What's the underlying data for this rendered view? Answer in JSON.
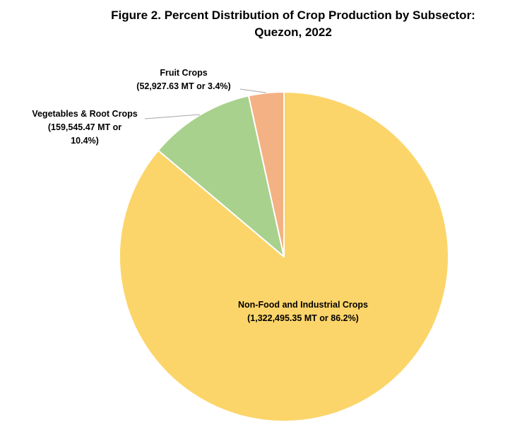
{
  "chart_data": {
    "type": "pie",
    "title_lines": [
      "Figure 2. Percent Distribution of Crop Production by Subsector:",
      "Quezon, 2022"
    ],
    "start_angle_deg": 0,
    "direction": "clockwise",
    "slices": [
      {
        "name": "Non-Food and Industrial Crops",
        "value": 1322495.35,
        "percent": 86.2,
        "color": "#FCD56A",
        "label_lines": [
          "Non-Food and Industrial Crops",
          "(1,322,495.35 MT or 86.2%)"
        ]
      },
      {
        "name": "Vegetables & Root Crops",
        "value": 159545.47,
        "percent": 10.4,
        "color": "#A8D18D",
        "label_lines": [
          "Vegetables & Root Crops",
          "(159,545.47 MT or",
          "10.4%)"
        ]
      },
      {
        "name": "Fruit Crops",
        "value": 52927.63,
        "percent": 3.4,
        "color": "#F4B183",
        "label_lines": [
          "Fruit Crops",
          "(52,927.63 MT or 3.4%)"
        ]
      }
    ]
  }
}
